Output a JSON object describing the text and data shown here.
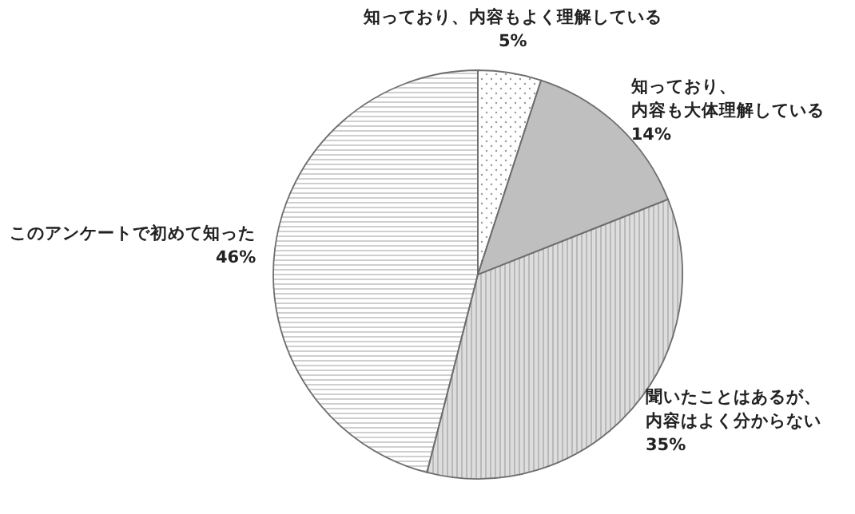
{
  "chart_data": {
    "type": "pie",
    "categories": [
      "知っており、内容もよく理解している",
      "知っており、内容も大体理解している",
      "聞いたことはあるが、内容はよく分からない",
      "このアンケートで初めて知った"
    ],
    "values": [
      5,
      14,
      35,
      46
    ],
    "value_labels": [
      "5%",
      "14%",
      "35%",
      "46%"
    ],
    "colors": [
      "#ffffff",
      "#bfbfbf",
      "#dddddd",
      "#ffffff"
    ],
    "legend": false
  }
}
